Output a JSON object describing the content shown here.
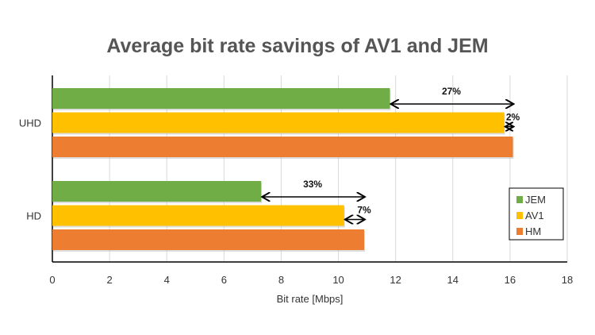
{
  "chart_data": {
    "type": "bar",
    "orientation": "horizontal",
    "title": "Average bit rate savings of AV1 and JEM",
    "xlabel": "Bit rate [Mbps]",
    "ylabel": "",
    "categories": [
      "UHD",
      "HD"
    ],
    "series": [
      {
        "name": "JEM",
        "color": "#70ad47",
        "values": [
          11.8,
          7.3
        ]
      },
      {
        "name": "AV1",
        "color": "#ffc000",
        "values": [
          15.8,
          10.2
        ]
      },
      {
        "name": "HM",
        "color": "#ed7d31",
        "values": [
          16.1,
          10.9
        ]
      }
    ],
    "xlim": [
      0,
      18
    ],
    "xticks": [
      0,
      2,
      4,
      6,
      8,
      10,
      12,
      14,
      16,
      18
    ],
    "grid": true,
    "legend": "right",
    "annotations": [
      {
        "category": "UHD",
        "from": "JEM",
        "to": "HM",
        "label": "27%"
      },
      {
        "category": "UHD",
        "from": "AV1",
        "to": "HM",
        "label": "2%"
      },
      {
        "category": "HD",
        "from": "JEM",
        "to": "HM",
        "label": "33%"
      },
      {
        "category": "HD",
        "from": "AV1",
        "to": "HM",
        "label": "7%"
      }
    ]
  }
}
